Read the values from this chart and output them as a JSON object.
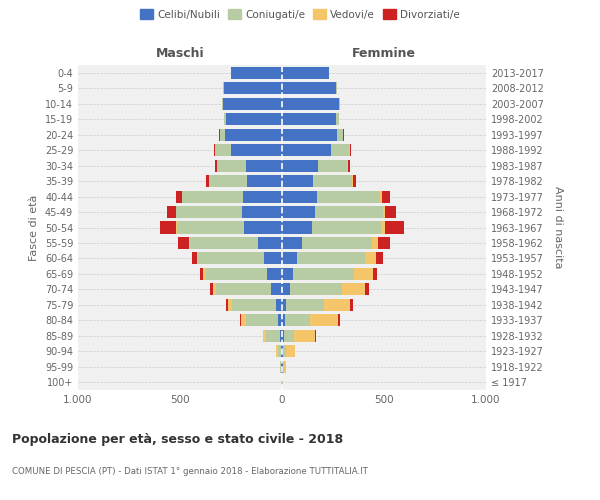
{
  "age_groups": [
    "100+",
    "95-99",
    "90-94",
    "85-89",
    "80-84",
    "75-79",
    "70-74",
    "65-69",
    "60-64",
    "55-59",
    "50-54",
    "45-49",
    "40-44",
    "35-39",
    "30-34",
    "25-29",
    "20-24",
    "15-19",
    "10-14",
    "5-9",
    "0-4"
  ],
  "birth_years": [
    "≤ 1917",
    "1918-1922",
    "1923-1927",
    "1928-1932",
    "1933-1937",
    "1938-1942",
    "1943-1947",
    "1948-1952",
    "1953-1957",
    "1958-1962",
    "1963-1967",
    "1968-1972",
    "1973-1977",
    "1978-1982",
    "1983-1987",
    "1988-1992",
    "1993-1997",
    "1998-2002",
    "2003-2007",
    "2008-2012",
    "2013-2017"
  ],
  "males": {
    "celibi": [
      2,
      4,
      5,
      10,
      20,
      30,
      55,
      75,
      90,
      120,
      185,
      195,
      190,
      170,
      175,
      250,
      280,
      275,
      290,
      285,
      250
    ],
    "coniugati": [
      2,
      5,
      15,
      70,
      155,
      215,
      270,
      300,
      320,
      330,
      330,
      325,
      300,
      190,
      145,
      80,
      25,
      10,
      5,
      3,
      2
    ],
    "vedovi": [
      0,
      2,
      10,
      15,
      25,
      20,
      15,
      10,
      8,
      5,
      3,
      2,
      1,
      0,
      0,
      0,
      0,
      0,
      0,
      0,
      0
    ],
    "divorziati": [
      0,
      0,
      0,
      0,
      5,
      10,
      15,
      15,
      25,
      55,
      80,
      40,
      30,
      15,
      10,
      5,
      3,
      0,
      0,
      0,
      0
    ]
  },
  "females": {
    "nubili": [
      2,
      4,
      5,
      10,
      15,
      20,
      40,
      55,
      75,
      100,
      145,
      160,
      170,
      150,
      175,
      240,
      270,
      265,
      280,
      265,
      230
    ],
    "coniugate": [
      2,
      5,
      15,
      50,
      120,
      185,
      255,
      300,
      330,
      340,
      340,
      335,
      310,
      195,
      145,
      90,
      30,
      12,
      5,
      3,
      2
    ],
    "vedove": [
      2,
      10,
      45,
      100,
      140,
      130,
      110,
      90,
      55,
      30,
      20,
      10,
      8,
      3,
      2,
      2,
      0,
      0,
      0,
      0,
      0
    ],
    "divorziate": [
      0,
      0,
      0,
      5,
      10,
      15,
      20,
      20,
      35,
      60,
      95,
      55,
      40,
      15,
      10,
      5,
      3,
      0,
      0,
      0,
      0
    ]
  },
  "colors": {
    "celibi": "#4472c4",
    "coniugati": "#b8cca4",
    "vedovi": "#f5c56a",
    "divorziati": "#cc2222"
  },
  "xlim": 1000,
  "title": "Popolazione per età, sesso e stato civile - 2018",
  "subtitle": "COMUNE DI PESCIA (PT) - Dati ISTAT 1° gennaio 2018 - Elaborazione TUTTITALIA.IT",
  "xlabel_left": "Maschi",
  "xlabel_right": "Femmine",
  "ylabel_left": "Fasce di età",
  "ylabel_right": "Anni di nascita",
  "bg_color": "#f0f0f0",
  "grid_color": "#cccccc"
}
